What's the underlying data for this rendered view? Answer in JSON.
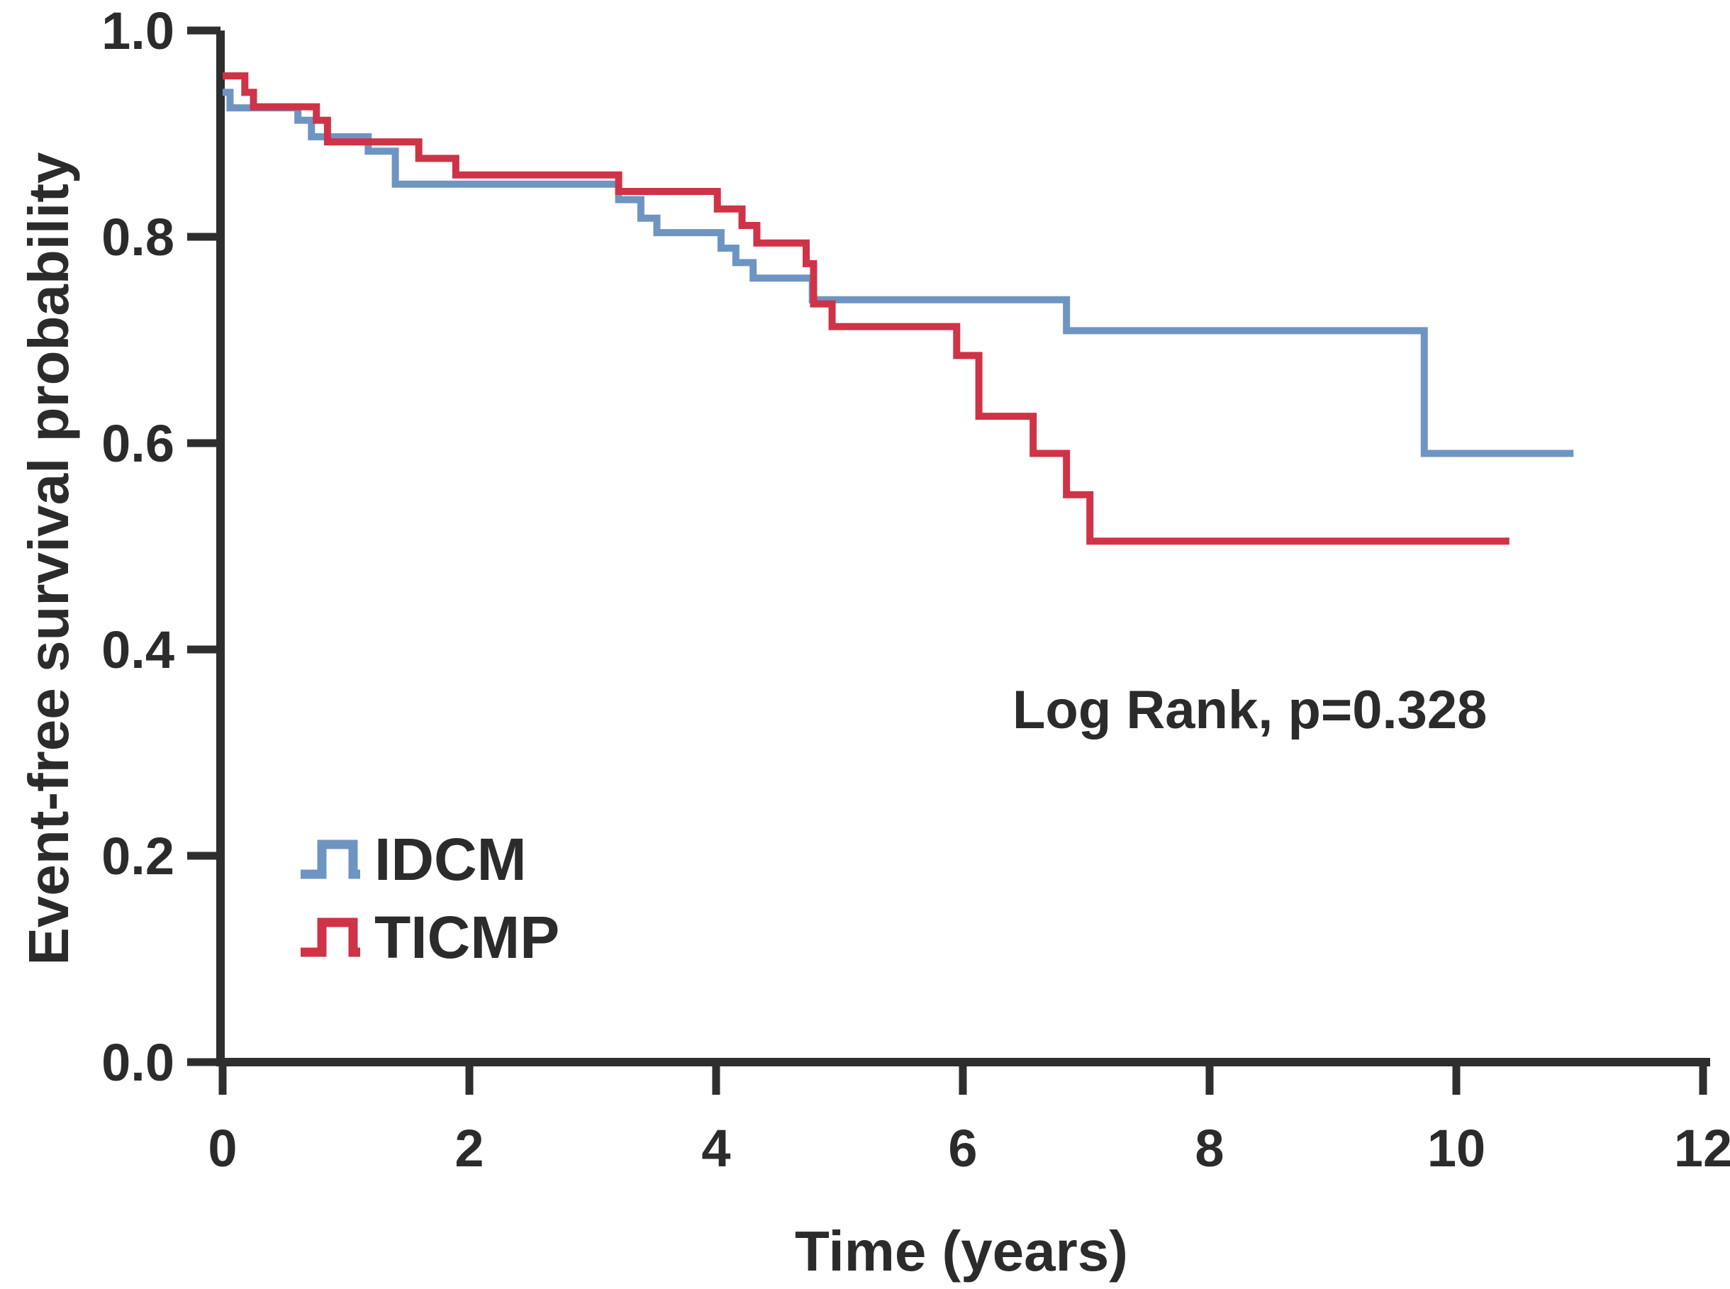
{
  "figure": {
    "kind": "kaplan-meier-survival-plot",
    "background": "#ffffff"
  },
  "chart_data": {
    "type": "line",
    "subtype": "step-survival",
    "title": "",
    "xlabel": "Time (years)",
    "ylabel": "Event-free survival probability",
    "xlim": [
      0,
      12
    ],
    "ylim": [
      0.0,
      1.0
    ],
    "x_ticks": [
      0,
      2,
      4,
      6,
      8,
      10,
      12
    ],
    "y_ticks": [
      0.0,
      0.2,
      0.4,
      0.6,
      0.8,
      1.0
    ],
    "grid": false,
    "legend_position": "inside-lower-left",
    "annotation": {
      "text": "Log Rank, p=0.328",
      "x": 6.4,
      "y": 0.34
    },
    "series": [
      {
        "name": "IDCM",
        "color": "#6e95c2",
        "end_time": 10.95,
        "steps": [
          [
            0.0,
            0.94
          ],
          [
            0.06,
            0.925
          ],
          [
            0.61,
            0.913
          ],
          [
            0.72,
            0.897
          ],
          [
            1.18,
            0.883
          ],
          [
            1.4,
            0.851
          ],
          [
            3.21,
            0.836
          ],
          [
            3.39,
            0.818
          ],
          [
            3.52,
            0.804
          ],
          [
            4.04,
            0.789
          ],
          [
            4.16,
            0.775
          ],
          [
            4.3,
            0.76
          ],
          [
            4.78,
            0.739
          ],
          [
            6.84,
            0.709
          ],
          [
            9.74,
            0.59
          ]
        ]
      },
      {
        "name": "TICMP",
        "color": "#cf3347",
        "end_time": 10.43,
        "steps": [
          [
            0.0,
            0.956
          ],
          [
            0.18,
            0.94
          ],
          [
            0.25,
            0.926
          ],
          [
            0.76,
            0.913
          ],
          [
            0.85,
            0.892
          ],
          [
            1.59,
            0.876
          ],
          [
            1.89,
            0.86
          ],
          [
            3.21,
            0.844
          ],
          [
            4.01,
            0.827
          ],
          [
            4.21,
            0.811
          ],
          [
            4.33,
            0.794
          ],
          [
            4.73,
            0.774
          ],
          [
            4.79,
            0.735
          ],
          [
            4.94,
            0.713
          ],
          [
            5.95,
            0.685
          ],
          [
            6.13,
            0.626
          ],
          [
            6.57,
            0.59
          ],
          [
            6.84,
            0.55
          ],
          [
            7.03,
            0.505
          ]
        ]
      }
    ]
  },
  "legend": {
    "items": [
      {
        "label": "IDCM",
        "color": "#6e95c2"
      },
      {
        "label": "TICMP",
        "color": "#cf3347"
      }
    ]
  },
  "colors": {
    "axis": "#2e2e2e",
    "text": "#2b2b2b",
    "idcm_blue": "#6e95c2",
    "ticmp_red": "#cf3347",
    "background": "#ffffff"
  }
}
